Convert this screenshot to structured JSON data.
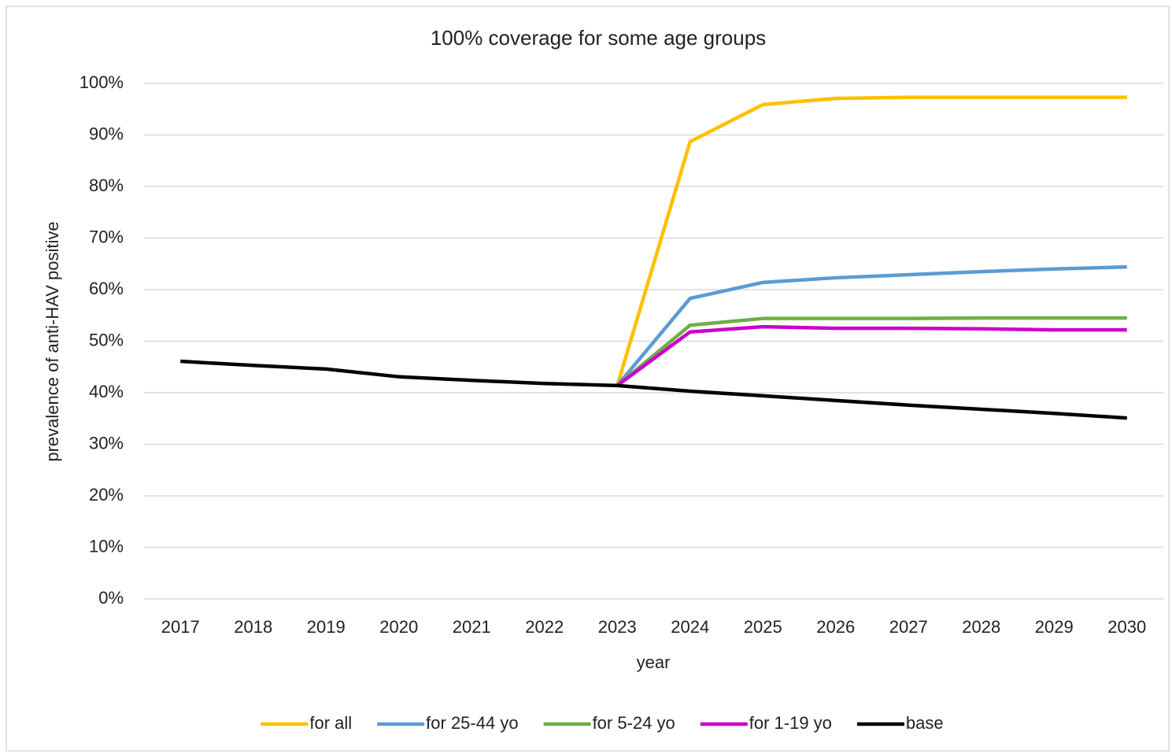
{
  "chart_data": {
    "type": "line",
    "title": "100% coverage for some age groups",
    "x_label": "year",
    "y_label": "prevalence of anti-HAV positive",
    "categories": [
      "2017",
      "2018",
      "2019",
      "2020",
      "2021",
      "2022",
      "2023",
      "2024",
      "2025",
      "2026",
      "2027",
      "2028",
      "2029",
      "2030"
    ],
    "ylim": [
      0,
      100
    ],
    "yticks": [
      {
        "value": 0,
        "label": "0%"
      },
      {
        "value": 10,
        "label": "10%"
      },
      {
        "value": 20,
        "label": "20%"
      },
      {
        "value": 30,
        "label": "30%"
      },
      {
        "value": 40,
        "label": "40%"
      },
      {
        "value": 50,
        "label": "50%"
      },
      {
        "value": 60,
        "label": "60%"
      },
      {
        "value": 70,
        "label": "70%"
      },
      {
        "value": 80,
        "label": "80%"
      },
      {
        "value": 90,
        "label": "90%"
      },
      {
        "value": 100,
        "label": "100%"
      }
    ],
    "grid": true,
    "legend": "bottom",
    "series": [
      {
        "name": "for all",
        "color": "#ffc000",
        "values": [
          null,
          null,
          null,
          null,
          null,
          null,
          41.4,
          88.7,
          95.9,
          97.1,
          97.3,
          97.3,
          97.3,
          97.3
        ]
      },
      {
        "name": "for 25-44 yo",
        "color": "#5b9bd5",
        "values": [
          null,
          null,
          null,
          null,
          null,
          null,
          41.4,
          58.3,
          61.4,
          62.3,
          62.9,
          63.5,
          64.0,
          64.4
        ]
      },
      {
        "name": "for 5-24 yo",
        "color": "#70ad47",
        "values": [
          null,
          null,
          null,
          null,
          null,
          null,
          41.4,
          53.1,
          54.4,
          54.4,
          54.4,
          54.5,
          54.5,
          54.5
        ]
      },
      {
        "name": "for 1-19 yo",
        "color": "#cc00cc",
        "values": [
          null,
          null,
          null,
          null,
          null,
          null,
          41.4,
          51.8,
          52.8,
          52.5,
          52.5,
          52.4,
          52.2,
          52.2
        ]
      },
      {
        "name": "base",
        "color": "#000000",
        "values": [
          46.1,
          45.3,
          44.6,
          43.1,
          42.4,
          41.8,
          41.4,
          40.3,
          39.4,
          38.5,
          37.6,
          36.8,
          36.0,
          35.1
        ]
      }
    ]
  }
}
